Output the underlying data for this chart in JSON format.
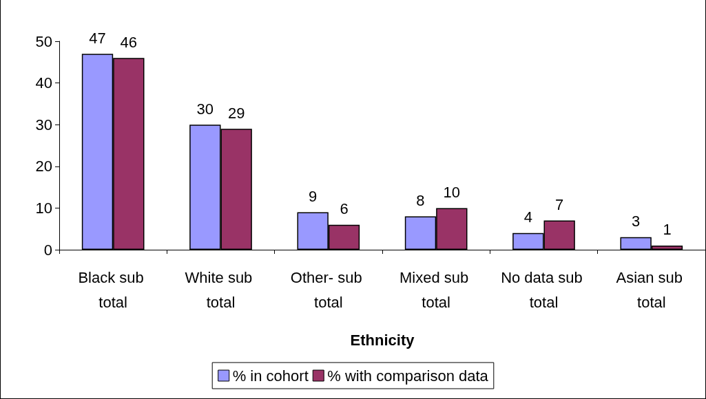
{
  "chart_data": {
    "type": "bar",
    "xlabel": "Ethnicity",
    "categories": [
      "Black sub total",
      "White sub total",
      "Other- sub total",
      "Mixed sub total",
      "No data sub total",
      "Asian sub total"
    ],
    "series": [
      {
        "name": "% in cohort",
        "color": "#9999ff",
        "values": [
          47,
          30,
          9,
          8,
          4,
          3
        ]
      },
      {
        "name": "% with comparison data",
        "color": "#993366",
        "values": [
          46,
          29,
          6,
          10,
          7,
          1
        ]
      }
    ],
    "ylim": [
      0,
      50
    ],
    "yticks": [
      0,
      10,
      20,
      30,
      40,
      50
    ],
    "grid": false,
    "legend": "bottom",
    "data_labels": true
  }
}
